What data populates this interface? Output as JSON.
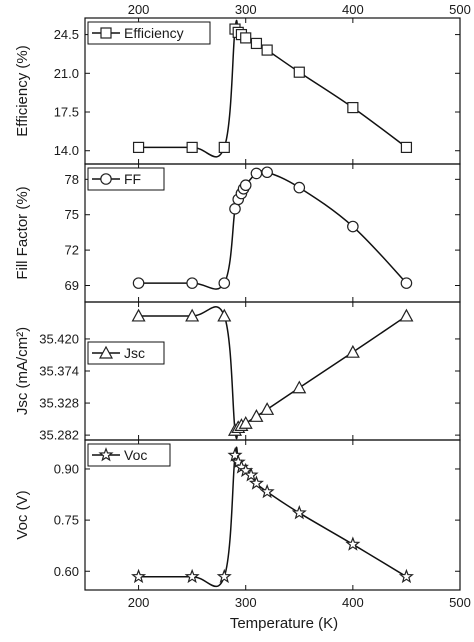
{
  "chart_data": {
    "type": "line",
    "xlabel": "Temperature (K)",
    "x_ticks": [
      "200",
      "300",
      "400",
      "500"
    ],
    "xlim": [
      150,
      500
    ],
    "panels": [
      {
        "id": "efficiency",
        "ylabel": "Efficiency (%)",
        "legend": "Efficiency",
        "marker": "square",
        "y_ticks": [
          "14.0",
          "17.5",
          "21.0",
          "24.5"
        ],
        "ylim": [
          12.8,
          26.0
        ],
        "x": [
          200,
          250,
          280,
          290,
          293,
          296,
          300,
          310,
          320,
          350,
          400,
          450
        ],
        "y": [
          14.3,
          14.3,
          14.3,
          25.0,
          24.7,
          24.5,
          24.2,
          23.7,
          23.1,
          21.1,
          17.9,
          14.3
        ]
      },
      {
        "id": "fill-factor",
        "ylabel": "Fill Factor (%)",
        "legend": "FF",
        "marker": "circle",
        "y_ticks": [
          "69",
          "72",
          "75",
          "78"
        ],
        "ylim": [
          67.6,
          79.3
        ],
        "x": [
          200,
          250,
          280,
          290,
          293,
          296,
          298,
          300,
          310,
          320,
          350,
          400,
          450
        ],
        "y": [
          69.2,
          69.2,
          69.2,
          75.5,
          76.3,
          76.8,
          77.2,
          77.5,
          78.5,
          78.6,
          77.3,
          74.0,
          69.2
        ]
      },
      {
        "id": "jsc",
        "ylabel": "Jsc (mA/cm²)",
        "legend": "Jsc",
        "marker": "triangle",
        "y_ticks": [
          "35.282",
          "35.328",
          "35.374",
          "35.420"
        ],
        "ylim": [
          35.275,
          35.473
        ],
        "x": [
          200,
          250,
          280,
          290,
          293,
          296,
          300,
          310,
          320,
          350,
          400,
          450
        ],
        "y": [
          35.453,
          35.453,
          35.453,
          35.289,
          35.293,
          35.296,
          35.299,
          35.309,
          35.319,
          35.35,
          35.401,
          35.453
        ]
      },
      {
        "id": "voc",
        "ylabel": "Voc (V)",
        "legend": "Voc",
        "marker": "star",
        "y_ticks": [
          "0.60",
          "0.75",
          "0.90"
        ],
        "ylim": [
          0.545,
          0.985
        ],
        "x": [
          200,
          250,
          280,
          290,
          293,
          296,
          300,
          305,
          310,
          320,
          350,
          400,
          450
        ],
        "y": [
          0.584,
          0.584,
          0.584,
          0.94,
          0.92,
          0.905,
          0.895,
          0.882,
          0.858,
          0.833,
          0.771,
          0.679,
          0.584
        ]
      }
    ]
  }
}
